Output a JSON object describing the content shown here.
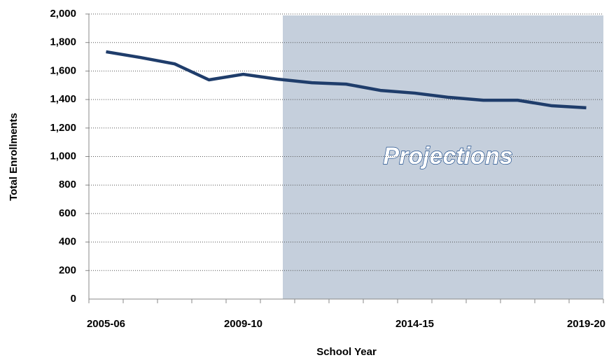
{
  "chart_data": {
    "type": "line",
    "x_label": "School Year",
    "y_label": "Total Enrollments",
    "annotation": "Projections",
    "categories": [
      "2005-06",
      null,
      null,
      null,
      "2009-10",
      null,
      null,
      null,
      null,
      "2014-15",
      null,
      null,
      null,
      null,
      "2019-20"
    ],
    "series": [
      {
        "name": "Total Enrollments",
        "color": "#1f3d6b",
        "values": [
          1735,
          1695,
          1650,
          1538,
          1577,
          1543,
          1518,
          1508,
          1464,
          1445,
          1415,
          1395,
          1395,
          1356,
          1342
        ]
      }
    ],
    "ylim": [
      0,
      2000
    ],
    "yticks": [
      0,
      200,
      400,
      600,
      800,
      {
        "value": 1000,
        "label": "1,000"
      },
      {
        "value": 1200,
        "label": "1,200"
      },
      {
        "value": 1400,
        "label": "1,400"
      },
      {
        "value": 1600,
        "label": "1,600"
      },
      {
        "value": 1800,
        "label": "1,800"
      },
      {
        "value": 2000,
        "label": "2,000"
      }
    ],
    "grid": true
  }
}
